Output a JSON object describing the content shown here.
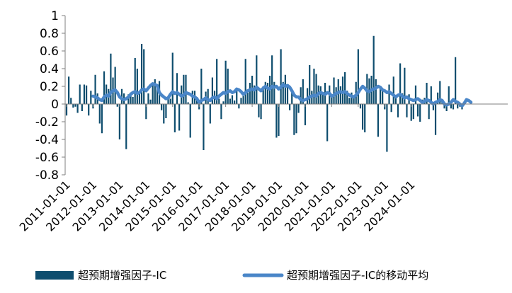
{
  "chart_data": {
    "type": "bar",
    "title": "",
    "xlabel": "",
    "ylabel": "",
    "ylim": [
      -0.8,
      1
    ],
    "yticks": [
      "1",
      "0.8",
      "0.6",
      "0.4",
      "0.2",
      "0",
      "-0.2",
      "-0.4",
      "-0.6",
      "-0.8"
    ],
    "xticks": [
      "2011-01-01",
      "2012-01-01",
      "2013-01-01",
      "2014-01-01",
      "2015-01-01",
      "2016-01-01",
      "2017-01-01",
      "2018-01-01",
      "2019-01-01",
      "2020-01-01",
      "2021-01-01",
      "2022-01-01",
      "2023-01-01",
      "2024-01-01"
    ],
    "start": "2011-01",
    "legend_position": "bottom",
    "colors": {
      "bar": "#0e4d6e",
      "line": "#4a86c8"
    },
    "series": [
      {
        "name": "超预期增强因子-IC",
        "type": "bar",
        "values": [
          -0.13,
          0.31,
          0.07,
          -0.04,
          -0.03,
          -0.1,
          0.22,
          -0.08,
          0.22,
          0.21,
          -0.13,
          0.15,
          -0.05,
          0.33,
          0.12,
          -0.22,
          -0.33,
          0.37,
          0.22,
          0.17,
          0.57,
          0.3,
          0.42,
          -0.03,
          -0.4,
          0.17,
          0.12,
          -0.51,
          0.11,
          0.13,
          0.08,
          0.52,
          0.4,
          0.14,
          0.68,
          0.62,
          -0.17,
          0.12,
          0.05,
          0.24,
          0.28,
          0.2,
          0.26,
          -0.07,
          -0.22,
          -0.16,
          0.09,
          0.06,
          0.58,
          -0.32,
          0.35,
          -0.3,
          0.21,
          0.33,
          0.33,
          0.02,
          -0.38,
          0.15,
          0.15,
          0.08,
          -0.06,
          0.4,
          -0.52,
          0.14,
          0.17,
          -0.22,
          0.3,
          0.15,
          0.51,
          0.06,
          -0.17,
          0.03,
          0.49,
          0.4,
          0.06,
          0.1,
          0.04,
          0.18,
          -0.05,
          0.07,
          0.09,
          0.51,
          0.13,
          0.24,
          0.32,
          0.21,
          0.55,
          -0.15,
          -0.17,
          0.2,
          0.25,
          0.24,
          0.32,
          0.55,
          0.25,
          -0.38,
          -0.36,
          0.62,
          0.25,
          0.33,
          0.22,
          -0.07,
          0.15,
          -0.35,
          -0.33,
          -0.1,
          0.19,
          0.28,
          -0.24,
          0.18,
          0.44,
          0.15,
          0.4,
          0.34,
          0.21,
          0.2,
          0.13,
          0.24,
          -0.42,
          0.21,
          0.08,
          0.3,
          0.19,
          0.28,
          0.2,
          0.31,
          0.36,
          0.15,
          0.07,
          0.13,
          0.09,
          0.25,
          0.62,
          -0.05,
          -0.29,
          -0.32,
          0.34,
          0.29,
          0.32,
          0.77,
          0.28,
          -0.37,
          0.2,
          0.17,
          -0.06,
          -0.54,
          0.22,
          -0.09,
          0.31,
          0.1,
          -0.15,
          0.46,
          0.12,
          0.41,
          -0.15,
          0.11,
          -0.19,
          -0.17,
          0.21,
          -0.14,
          -0.2,
          0.05,
          0.07,
          0.24,
          -0.17,
          0.2,
          -0.07,
          -0.35,
          0.13,
          0.26,
          0.04,
          -0.05,
          -0.08,
          0.2,
          -0.05,
          -0.06,
          0.53,
          -0.05,
          -0.03,
          -0.06
        ]
      },
      {
        "name": "超预期增强因子-IC的移动平均",
        "type": "line",
        "values": [
          null,
          null,
          null,
          null,
          null,
          null,
          null,
          null,
          null,
          null,
          null,
          null,
          0.09,
          0.08,
          0.07,
          0.05,
          0.04,
          0.08,
          0.1,
          0.09,
          0.13,
          0.15,
          0.16,
          0.13,
          0.08,
          0.06,
          0.05,
          0.06,
          0.08,
          0.11,
          0.13,
          0.14,
          0.12,
          0.13,
          0.16,
          0.17,
          0.15,
          0.18,
          0.21,
          0.23,
          0.22,
          0.21,
          0.13,
          0.1,
          0.08,
          0.06,
          0.07,
          0.11,
          0.14,
          0.12,
          0.13,
          0.11,
          0.09,
          0.1,
          0.13,
          0.12,
          0.11,
          0.09,
          0.08,
          0.06,
          0.02,
          0.04,
          0.05,
          0.07,
          0.05,
          0.04,
          0.07,
          0.08,
          0.06,
          0.09,
          0.11,
          0.13,
          0.12,
          0.14,
          0.15,
          0.13,
          0.14,
          0.17,
          0.16,
          0.14,
          0.11,
          0.13,
          0.15,
          0.16,
          0.17,
          0.16,
          0.19,
          0.17,
          0.15,
          0.18,
          0.2,
          0.18,
          0.17,
          0.2,
          0.19,
          0.2,
          0.17,
          0.19,
          0.22,
          0.2,
          0.21,
          0.19,
          0.15,
          0.1,
          0.08,
          0.08,
          0.05,
          0.04,
          0.05,
          0.06,
          0.08,
          0.09,
          0.1,
          0.09,
          0.12,
          0.13,
          0.12,
          0.11,
          0.13,
          0.12,
          0.09,
          0.1,
          0.12,
          0.13,
          0.14,
          0.13,
          0.14,
          0.12,
          0.1,
          0.09,
          0.08,
          0.1,
          0.13,
          0.17,
          0.2,
          0.18,
          0.15,
          0.14,
          0.16,
          0.17,
          0.18,
          0.2,
          0.19,
          0.16,
          0.15,
          0.13,
          0.14,
          0.12,
          0.1,
          0.08,
          0.1,
          0.11,
          0.09,
          0.07,
          0.08,
          0.06,
          0.05,
          0.04,
          0.05,
          0.06,
          0.04,
          0.02,
          0.03,
          0.05,
          0.04,
          0.02,
          0.0,
          0.02,
          0.03,
          0.05,
          0.04,
          0.0,
          -0.01,
          0.0,
          0.02,
          0.05,
          0.03,
          0.02,
          0.0,
          -0.02,
          0.01,
          0.05,
          0.04,
          0.02
        ]
      }
    ]
  }
}
